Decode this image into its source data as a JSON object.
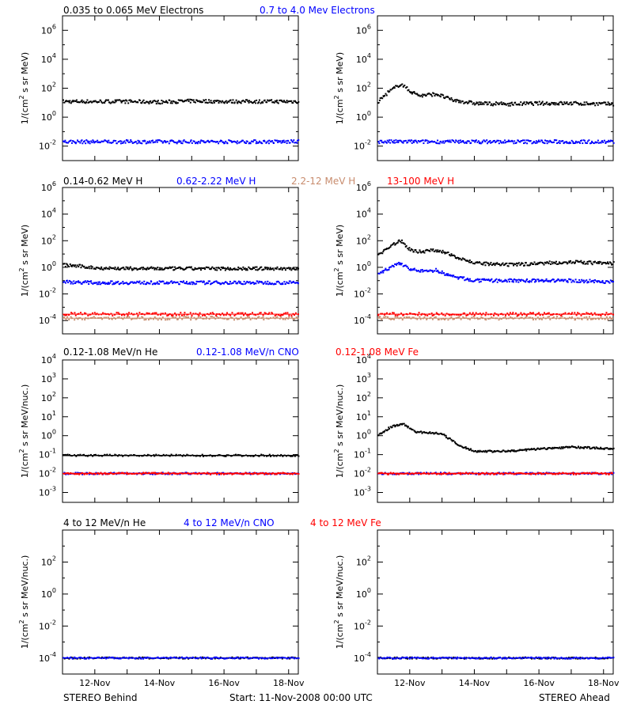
{
  "footer": {
    "left": "STEREO Behind",
    "center": "Start: 11-Nov-2008 00:00 UTC",
    "right": "STEREO Ahead"
  },
  "x_ticks": [
    "12-Nov",
    "14-Nov",
    "16-Nov",
    "18-Nov"
  ],
  "x_tick_days": [
    1,
    3,
    5,
    7
  ],
  "colors": {
    "black": "#000000",
    "blue": "#0000ff",
    "tan": "#c88c6e",
    "red": "#ff0000"
  },
  "rows": [
    {
      "ylabel_html": "1/(cm² s sr MeV)",
      "ylabel_main": "1/(cm",
      "ylabel_sup": "2",
      "ylabel_rest": " s sr MeV)",
      "ylog": [
        -3,
        7
      ],
      "yticks": [
        -2,
        0,
        2,
        4,
        6
      ],
      "legend": [
        {
          "text": "0.035 to 0.065 MeV Electrons",
          "color": "#000000"
        },
        {
          "text": "0.7 to 4.0 Mev Electrons",
          "color": "#0000ff"
        }
      ]
    },
    {
      "ylabel_main": "1/(cm",
      "ylabel_sup": "2",
      "ylabel_rest": " s sr MeV)",
      "ylog": [
        -5,
        6
      ],
      "yticks": [
        -4,
        -2,
        0,
        2,
        4,
        6
      ],
      "legend": [
        {
          "text": "0.14-0.62 MeV H",
          "color": "#000000"
        },
        {
          "text": "0.62-2.22 MeV H",
          "color": "#0000ff"
        },
        {
          "text": "2.2-12 MeV H",
          "color": "#c88c6e"
        },
        {
          "text": "13-100 MeV H",
          "color": "#ff0000"
        }
      ]
    },
    {
      "ylabel_main": "1/(cm",
      "ylabel_sup": "2",
      "ylabel_rest": " s sr MeV/nuc.)",
      "ylog": [
        -3.5,
        4
      ],
      "yticks": [
        -3,
        -2,
        -1,
        0,
        1,
        2,
        3,
        4
      ],
      "legend": [
        {
          "text": "0.12-1.08 MeV/n He",
          "color": "#000000"
        },
        {
          "text": "0.12-1.08 MeV/n CNO",
          "color": "#0000ff"
        },
        {
          "text": "0.12-1.08 MeV Fe",
          "color": "#ff0000"
        }
      ]
    },
    {
      "ylabel_main": "1/(cm",
      "ylabel_sup": "2",
      "ylabel_rest": " s sr MeV/nuc.)",
      "ylog": [
        -5,
        4
      ],
      "yticks": [
        -4,
        -2,
        0,
        2
      ],
      "legend": [
        {
          "text": "4 to 12 MeV/n He",
          "color": "#000000"
        },
        {
          "text": "4 to 12 MeV/n CNO",
          "color": "#0000ff"
        },
        {
          "text": "4 to 12 MeV Fe",
          "color": "#ff0000"
        }
      ]
    }
  ],
  "chart_data": [
    {
      "type": "scatter",
      "panel": "behind-electrons",
      "x_unit": "days since start",
      "xlim": [
        0,
        7.3
      ],
      "ylim": [
        0.001,
        10000000
      ],
      "yscale": "log",
      "series": [
        {
          "name": "0.035 to 0.065 MeV Electrons",
          "color": "#000000",
          "x": [
            0,
            1,
            2,
            3,
            4,
            5,
            6,
            7.3
          ],
          "y": [
            12,
            12,
            12,
            11,
            13,
            12,
            12,
            12
          ]
        },
        {
          "name": "0.7 to 4.0 Mev Electrons",
          "color": "#0000ff",
          "x": [
            0,
            1,
            2,
            3,
            4,
            5,
            6,
            7.3
          ],
          "y": [
            0.02,
            0.02,
            0.02,
            0.02,
            0.02,
            0.02,
            0.02,
            0.02
          ]
        }
      ]
    },
    {
      "type": "scatter",
      "panel": "ahead-electrons",
      "x_unit": "days since start",
      "xlim": [
        0,
        7.3
      ],
      "ylim": [
        0.001,
        10000000
      ],
      "yscale": "log",
      "series": [
        {
          "name": "0.035 to 0.065 MeV Electrons",
          "color": "#000000",
          "x": [
            0,
            0.3,
            0.7,
            1.0,
            1.3,
            1.8,
            2.3,
            3,
            4,
            5,
            6,
            7.3
          ],
          "y": [
            12,
            50,
            200,
            60,
            30,
            40,
            15,
            9,
            8,
            9,
            9,
            8
          ]
        },
        {
          "name": "0.7 to 4.0 Mev Electrons",
          "color": "#0000ff",
          "x": [
            0,
            1,
            2,
            3,
            4,
            5,
            6,
            7.3
          ],
          "y": [
            0.02,
            0.02,
            0.02,
            0.02,
            0.02,
            0.02,
            0.02,
            0.02
          ]
        }
      ]
    },
    {
      "type": "scatter",
      "panel": "behind-protons",
      "x_unit": "days since start",
      "xlim": [
        0,
        7.3
      ],
      "ylim": [
        1e-05,
        1000000
      ],
      "yscale": "log",
      "series": [
        {
          "name": "0.14-0.62 MeV H",
          "color": "#000000",
          "x": [
            0,
            0.5,
            1,
            2,
            3,
            4,
            5,
            6,
            7.3
          ],
          "y": [
            1.5,
            1.2,
            0.9,
            0.8,
            0.8,
            0.8,
            0.8,
            0.8,
            0.8
          ]
        },
        {
          "name": "0.62-2.22 MeV H",
          "color": "#0000ff",
          "x": [
            0,
            1,
            2,
            3,
            4,
            5,
            6,
            7.3
          ],
          "y": [
            0.08,
            0.07,
            0.07,
            0.07,
            0.07,
            0.07,
            0.07,
            0.07
          ]
        },
        {
          "name": "2.2-12 MeV H",
          "color": "#c88c6e",
          "x": [
            0,
            7.3
          ],
          "y": [
            0.00015,
            0.00015
          ]
        },
        {
          "name": "13-100 MeV H",
          "color": "#ff0000",
          "x": [
            0,
            7.3
          ],
          "y": [
            0.0003,
            0.0003
          ]
        }
      ]
    },
    {
      "type": "scatter",
      "panel": "ahead-protons",
      "x_unit": "days since start",
      "xlim": [
        0,
        7.3
      ],
      "ylim": [
        1e-05,
        1000000
      ],
      "yscale": "log",
      "series": [
        {
          "name": "0.14-0.62 MeV H",
          "color": "#000000",
          "x": [
            0,
            0.3,
            0.7,
            1.0,
            1.3,
            1.8,
            2.3,
            3,
            4,
            5,
            6,
            7,
            7.3
          ],
          "y": [
            8,
            30,
            100,
            20,
            15,
            20,
            8,
            2,
            1.5,
            2,
            2.5,
            2,
            2
          ]
        },
        {
          "name": "0.62-2.22 MeV H",
          "color": "#0000ff",
          "x": [
            0,
            0.3,
            0.7,
            1.0,
            1.3,
            1.8,
            2.3,
            3,
            4,
            5,
            6,
            7.3
          ],
          "y": [
            0.3,
            0.8,
            2,
            0.7,
            0.5,
            0.6,
            0.2,
            0.1,
            0.1,
            0.1,
            0.1,
            0.08
          ]
        },
        {
          "name": "2.2-12 MeV H",
          "color": "#c88c6e",
          "x": [
            0,
            7.3
          ],
          "y": [
            0.00015,
            0.00015
          ]
        },
        {
          "name": "13-100 MeV H",
          "color": "#ff0000",
          "x": [
            0,
            7.3
          ],
          "y": [
            0.0003,
            0.0003
          ]
        }
      ]
    },
    {
      "type": "scatter",
      "panel": "behind-heavy-low",
      "x_unit": "days since start",
      "xlim": [
        0,
        7.3
      ],
      "ylim": [
        0.0003,
        10000
      ],
      "yscale": "log",
      "series": [
        {
          "name": "0.12-1.08 MeV/n He",
          "color": "#000000",
          "x": [
            0,
            7.3
          ],
          "y": [
            0.09,
            0.09
          ]
        },
        {
          "name": "0.12-1.08 MeV/n CNO",
          "color": "#0000ff",
          "x": [
            0,
            7.3
          ],
          "y": [
            0.01,
            0.01
          ]
        },
        {
          "name": "0.12-1.08 MeV Fe",
          "color": "#ff0000",
          "x": [
            0,
            7.3
          ],
          "y": [
            0.01,
            0.01
          ]
        }
      ]
    },
    {
      "type": "scatter",
      "panel": "ahead-heavy-low",
      "x_unit": "days since start",
      "xlim": [
        0,
        7.3
      ],
      "ylim": [
        0.0003,
        10000
      ],
      "yscale": "log",
      "series": [
        {
          "name": "0.12-1.08 MeV/n He",
          "color": "#000000",
          "x": [
            0,
            0.4,
            0.8,
            1.2,
            1.5,
            2.0,
            2.5,
            3,
            4,
            5,
            6,
            7.3
          ],
          "y": [
            1,
            3,
            4,
            1.5,
            1.5,
            1.2,
            0.3,
            0.15,
            0.15,
            0.2,
            0.25,
            0.2
          ]
        },
        {
          "name": "0.12-1.08 MeV/n CNO",
          "color": "#0000ff",
          "x": [
            0,
            7.3
          ],
          "y": [
            0.01,
            0.01
          ]
        },
        {
          "name": "0.12-1.08 MeV Fe",
          "color": "#ff0000",
          "x": [
            0,
            7.3
          ],
          "y": [
            0.01,
            0.01
          ]
        }
      ]
    },
    {
      "type": "scatter",
      "panel": "behind-heavy-high",
      "x_unit": "days since start",
      "xlim": [
        0,
        7.3
      ],
      "ylim": [
        1e-05,
        10000
      ],
      "yscale": "log",
      "series": [
        {
          "name": "4 to 12 MeV/n He",
          "color": "#000000",
          "x": [
            0,
            7.3
          ],
          "y": [
            0.0001,
            0.0001
          ]
        },
        {
          "name": "4 to 12 MeV/n CNO",
          "color": "#0000ff",
          "x": [
            0,
            7.3
          ],
          "y": [
            0.0001,
            0.0001
          ]
        }
      ]
    },
    {
      "type": "scatter",
      "panel": "ahead-heavy-high",
      "x_unit": "days since start",
      "xlim": [
        0,
        7.3
      ],
      "ylim": [
        1e-05,
        10000
      ],
      "yscale": "log",
      "series": [
        {
          "name": "4 to 12 MeV/n He",
          "color": "#000000",
          "x": [
            0,
            7.3
          ],
          "y": [
            0.0001,
            0.0001
          ]
        },
        {
          "name": "4 to 12 MeV/n CNO",
          "color": "#0000ff",
          "x": [
            0,
            7.3
          ],
          "y": [
            0.0001,
            0.0001
          ]
        }
      ]
    }
  ]
}
